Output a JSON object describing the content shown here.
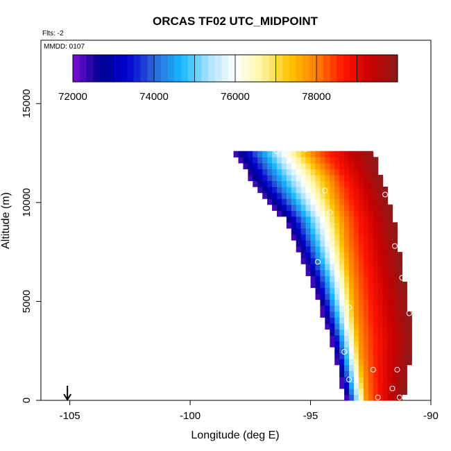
{
  "chart_data": {
    "type": "heatmap",
    "title": "ORCAS TF02 UTC_MIDPOINT",
    "subtitle": "Flts: -2",
    "inset_note": "MMDD: 0107",
    "xlabel": "Longitude (deg E)",
    "ylabel": "Altitude (m)",
    "xlim": [
      -106.2,
      -90
    ],
    "ylim": [
      0,
      18200
    ],
    "xticks": [
      -105,
      -100,
      -95,
      -90
    ],
    "xtick_labels": [
      "-105",
      "-100",
      "-95",
      "-90"
    ],
    "yticks": [
      0,
      5000,
      10000,
      15000
    ],
    "ytick_labels": [
      "0",
      "5000",
      "10000",
      "15000"
    ],
    "colorbar": {
      "min": 72000,
      "max": 80000,
      "ticks": [
        72000,
        74000,
        76000,
        78000
      ],
      "tick_labels": [
        "72000",
        "74000",
        "76000",
        "78000"
      ],
      "colors": [
        "#7a0fd9",
        "#00008f",
        "#0000d0",
        "#2d66d8",
        "#14b8ff",
        "#a9e2ff",
        "#ffffff",
        "#fff5a0",
        "#ffc400",
        "#ff8000",
        "#ff1500",
        "#c70000",
        "#8b1a1a"
      ]
    },
    "marker": {
      "x": -105.1,
      "y": 0,
      "symbol": "arrow-down"
    },
    "field": {
      "x_step": 0.2,
      "y_step": 300,
      "rows": [
        {
          "y": 0,
          "x0": -93.6,
          "x1": -91.2
        },
        {
          "y": 3000,
          "x0": -94.2,
          "x1": -90.8
        },
        {
          "y": 6000,
          "x0": -95.0,
          "x1": -91.2
        },
        {
          "y": 9000,
          "x0": -96.1,
          "x1": -91.6
        },
        {
          "y": 11000,
          "x0": -97.5,
          "x1": -92.1
        },
        {
          "y": 12500,
          "x0": -98.2,
          "x1": -92.5
        }
      ],
      "sweep": [
        {
          "y": 0,
          "x": -92.8
        },
        {
          "y": 3000,
          "x": -93.1
        },
        {
          "y": 6000,
          "x": -93.4
        },
        {
          "y": 9000,
          "x": -93.8
        },
        {
          "y": 11000,
          "x": -94.3
        },
        {
          "y": 12500,
          "x": -95.2
        }
      ]
    },
    "points": [
      {
        "x": -96.4,
        "y": 12600
      },
      {
        "x": -95.2,
        "y": 12700
      },
      {
        "x": -92.3,
        "y": 12650
      },
      {
        "x": -92.8,
        "y": 13100
      },
      {
        "x": -94.4,
        "y": 10600
      },
      {
        "x": -94.2,
        "y": 9500
      },
      {
        "x": -91.9,
        "y": 10400
      },
      {
        "x": -94.7,
        "y": 7000
      },
      {
        "x": -91.5,
        "y": 7800
      },
      {
        "x": -91.2,
        "y": 6200
      },
      {
        "x": -93.4,
        "y": 4700
      },
      {
        "x": -90.9,
        "y": 4400
      },
      {
        "x": -93.6,
        "y": 2450
      },
      {
        "x": -93.4,
        "y": 1050
      },
      {
        "x": -92.4,
        "y": 1550
      },
      {
        "x": -91.4,
        "y": 1550
      },
      {
        "x": -91.6,
        "y": 600
      },
      {
        "x": -91.3,
        "y": 150
      },
      {
        "x": -92.2,
        "y": 150
      }
    ]
  }
}
